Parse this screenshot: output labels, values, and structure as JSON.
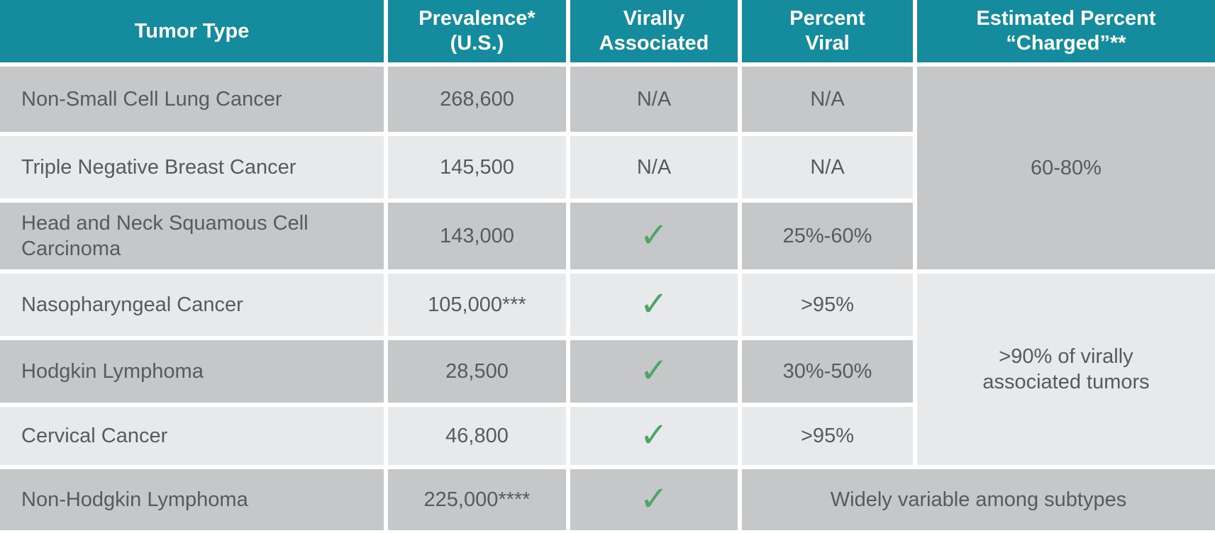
{
  "colors": {
    "header_teal": "#148c9e",
    "row_dark": "#c6c7c9",
    "row_light": "#e8e9ea",
    "body_text": "#595a5c",
    "check_green": "#4da568",
    "grid_gap": "#ffffff"
  },
  "icons": {
    "check": "✓"
  },
  "table": {
    "headers": {
      "tumor_type": "Tumor Type",
      "prevalence": "Prevalence*\n(U.S.)",
      "virally_associated": "Virally\nAssociated",
      "percent_viral": "Percent\nViral",
      "estimated_charged": "Estimated Percent\n“Charged”**"
    },
    "rows": [
      {
        "tumor": "Non-Small Cell Lung Cancer",
        "prevalence": "268,600",
        "virally_associated": "N/A",
        "percent_viral": "N/A"
      },
      {
        "tumor": "Triple Negative Breast Cancer",
        "prevalence": "145,500",
        "virally_associated": "N/A",
        "percent_viral": "N/A"
      },
      {
        "tumor": "Head and Neck Squamous Cell Carcinoma",
        "prevalence": "143,000",
        "virally_associated": "✓",
        "percent_viral": "25%-60%"
      },
      {
        "tumor": "Nasopharyngeal Cancer",
        "prevalence": "105,000***",
        "virally_associated": "✓",
        "percent_viral": ">95%"
      },
      {
        "tumor": "Hodgkin Lymphoma",
        "prevalence": "28,500",
        "virally_associated": "✓",
        "percent_viral": "30%-50%"
      },
      {
        "tumor": "Cervical Cancer",
        "prevalence": "46,800",
        "virally_associated": "✓",
        "percent_viral": ">95%"
      },
      {
        "tumor": "Non-Hodgkin Lymphoma",
        "prevalence": "225,000****",
        "virally_associated": "✓"
      }
    ],
    "merged": {
      "charged_top": "60-80%",
      "charged_middle": ">90% of virally\nassociated tumors",
      "bottom_span": "Widely variable among subtypes"
    }
  },
  "chart_data": {
    "type": "table",
    "columns": [
      "Tumor Type",
      "Prevalence* (U.S.)",
      "Virally Associated",
      "Percent Viral",
      "Estimated Percent “Charged”**"
    ],
    "rows": [
      [
        "Non-Small Cell Lung Cancer",
        "268,600",
        "N/A",
        "N/A",
        "60-80%"
      ],
      [
        "Triple Negative Breast Cancer",
        "145,500",
        "N/A",
        "N/A",
        "60-80%"
      ],
      [
        "Head and Neck Squamous Cell Carcinoma",
        "143,000",
        "✓",
        "25%-60%",
        "60-80%"
      ],
      [
        "Nasopharyngeal Cancer",
        "105,000***",
        "✓",
        ">95%",
        ">90% of virally associated tumors"
      ],
      [
        "Hodgkin Lymphoma",
        "28,500",
        "✓",
        "30%-50%",
        ">90% of virally associated tumors"
      ],
      [
        "Cervical Cancer",
        "46,800",
        "✓",
        ">95%",
        ">90% of virally associated tumors"
      ],
      [
        "Non-Hodgkin Lymphoma",
        "225,000****",
        "✓",
        "Widely variable among subtypes",
        "Widely variable among subtypes"
      ]
    ],
    "merges": [
      {
        "column_index": 4,
        "row_indexes": [
          0,
          1,
          2
        ],
        "value": "60-80%"
      },
      {
        "column_index": 4,
        "row_indexes": [
          3,
          4,
          5
        ],
        "value": ">90% of virally associated tumors"
      },
      {
        "column_indexes": [
          3,
          4
        ],
        "row_indexes": [
          6
        ],
        "value": "Widely variable among subtypes"
      }
    ],
    "legend_position": "none",
    "grid": "white gaps between cells"
  }
}
